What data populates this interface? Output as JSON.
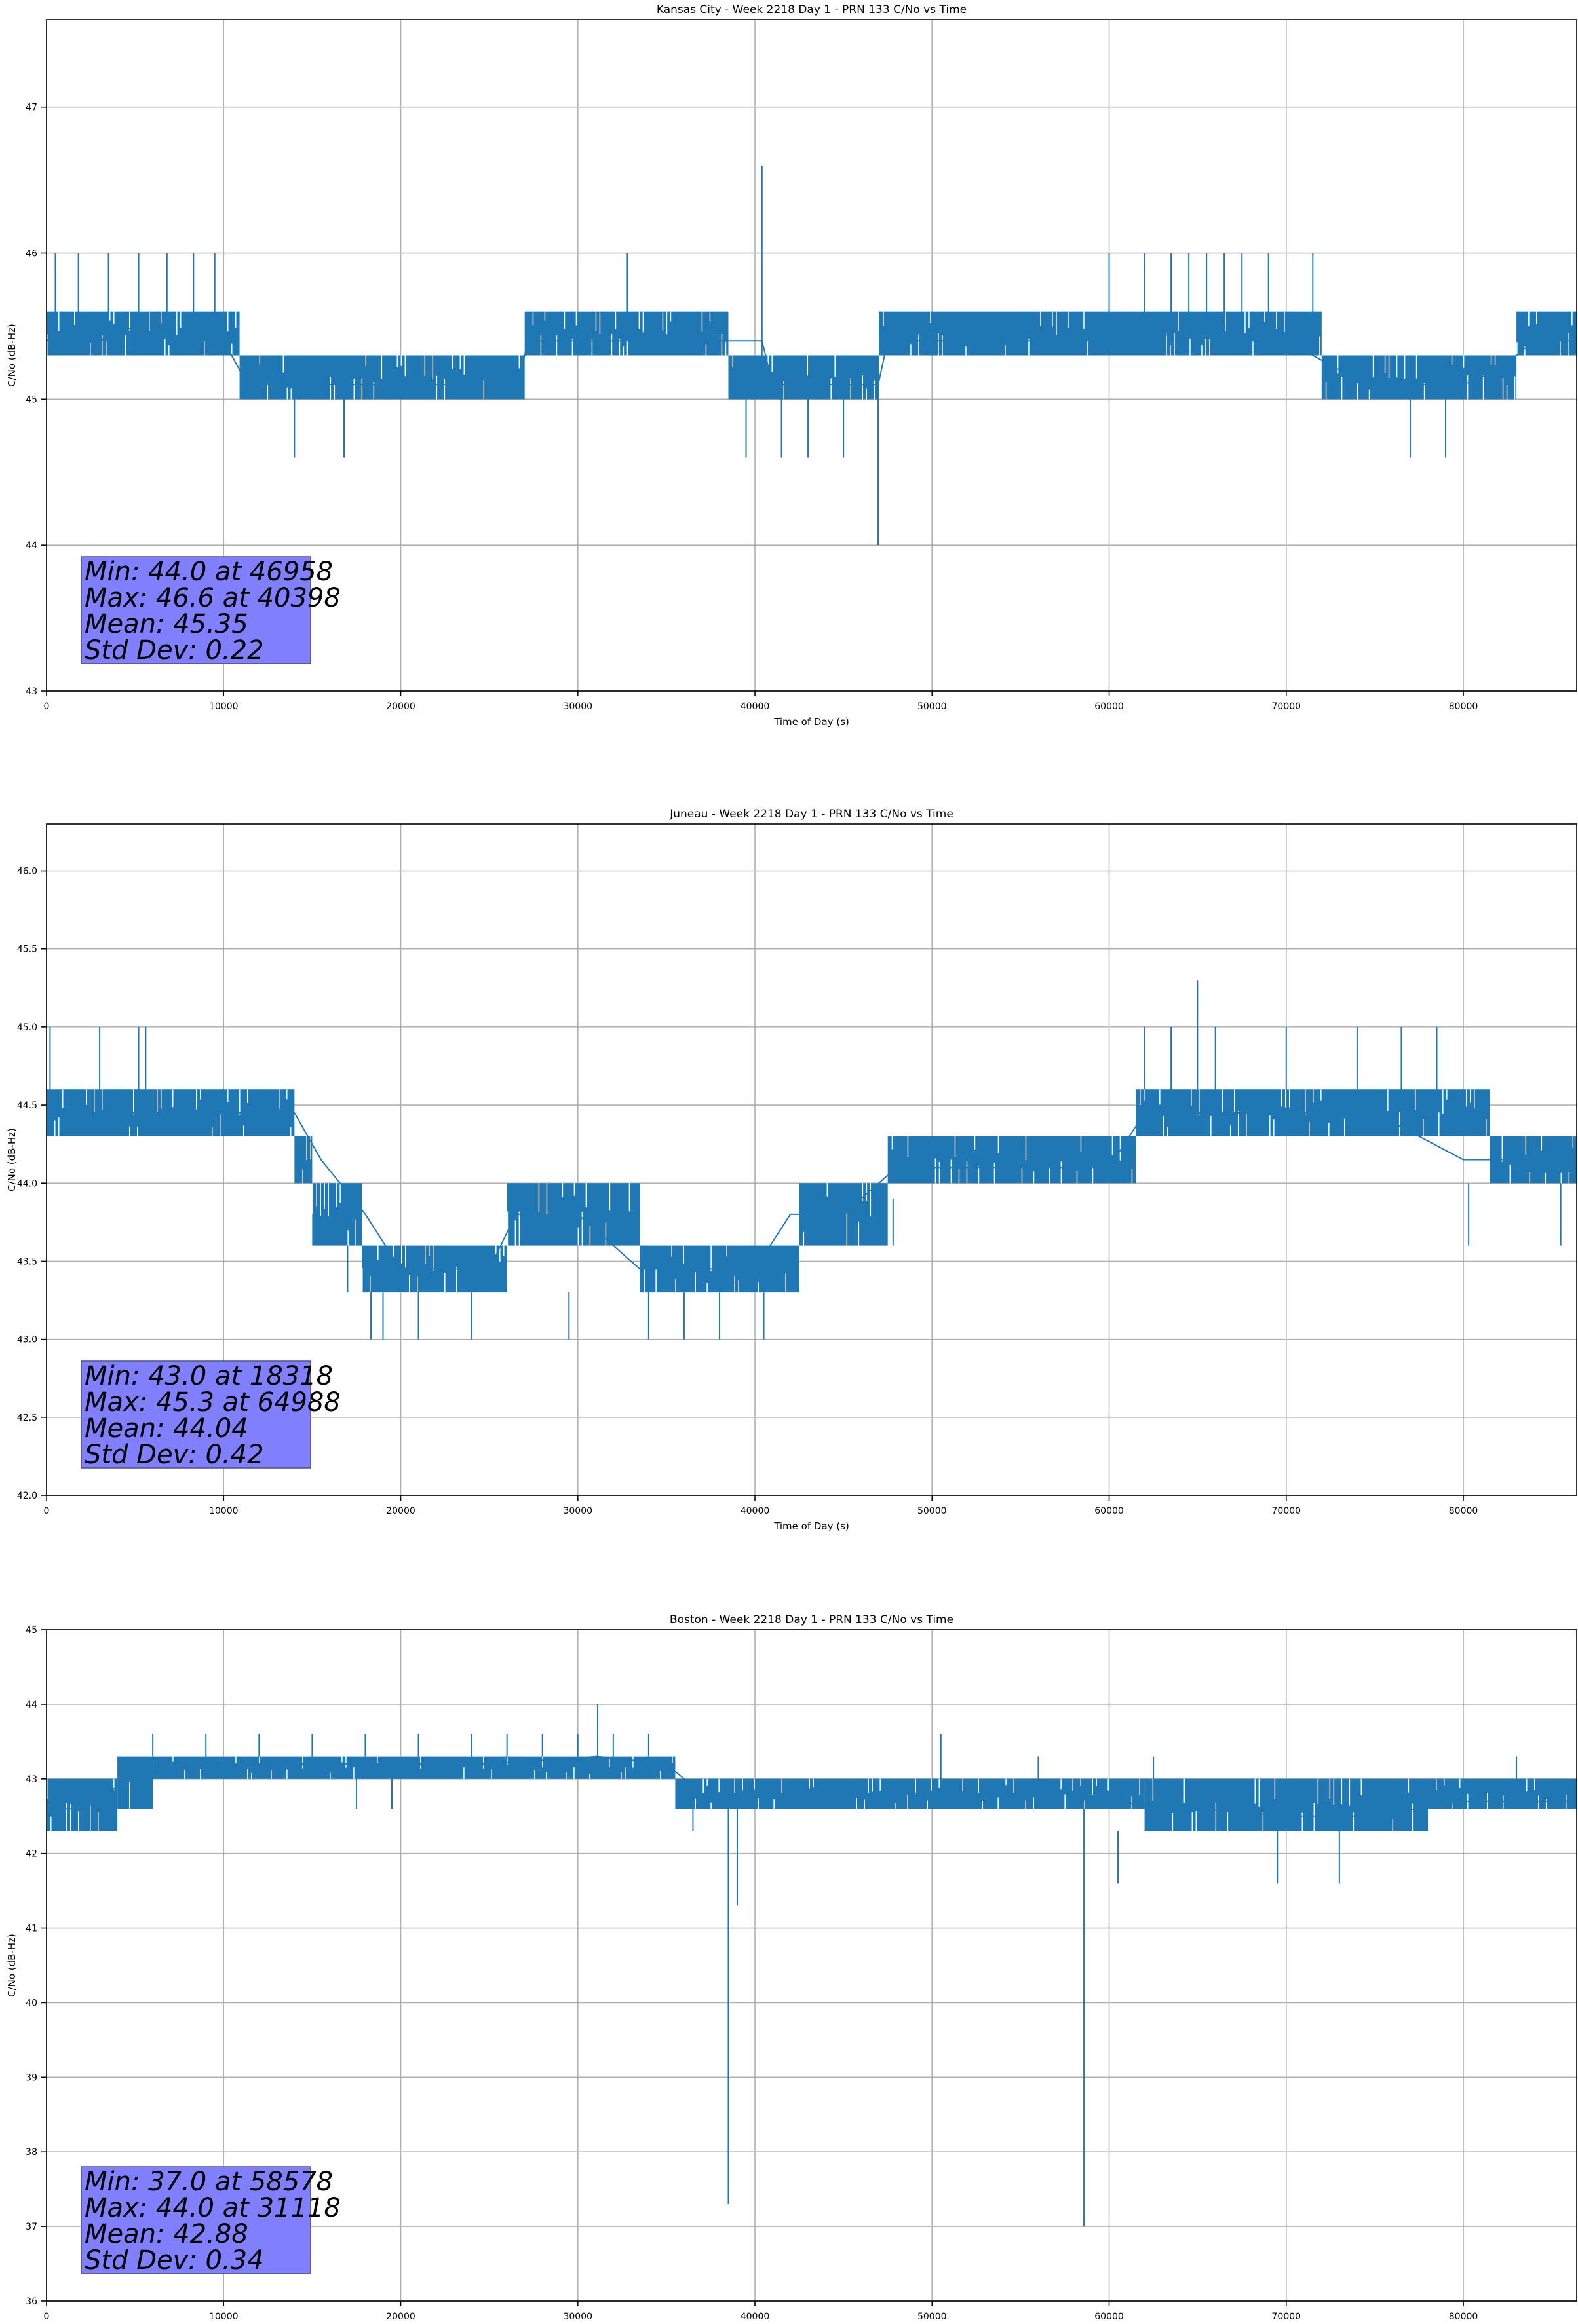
{
  "chart_data": [
    {
      "type": "line",
      "title": "Kansas City - Week 2218 Day 1 - PRN 133 C/No vs Time",
      "xlabel": "Time of Day (s)",
      "ylabel": "C/No (dB-Hz)",
      "xlim": [
        0,
        86400
      ],
      "ylim": [
        43,
        47.6
      ],
      "xticks": [
        0,
        10000,
        20000,
        30000,
        40000,
        50000,
        60000,
        70000,
        80000
      ],
      "xtick_labels": [
        "0",
        "10000",
        "20000",
        "30000",
        "40000",
        "50000",
        "60000",
        "70000",
        "80000"
      ],
      "yticks": [
        43,
        44,
        45,
        46,
        47
      ],
      "ytick_labels": [
        "43",
        "44",
        "45",
        "46",
        "47"
      ],
      "grid": true,
      "color": "#1f77b4",
      "series": [
        {
          "name": "C/No",
          "x": [
            0,
            1500,
            3000,
            5000,
            7000,
            9000,
            10000,
            10900,
            11200,
            14000,
            16500,
            20000,
            23000,
            26800,
            27200,
            29000,
            31000,
            32800,
            34000,
            38000,
            40398,
            41000,
            44000,
            46958,
            47500,
            50000,
            55000,
            60000,
            62000,
            65000,
            68000,
            70000,
            73000,
            75000,
            77000,
            80000,
            82000,
            84000,
            86400
          ],
          "values": [
            45.4,
            45.5,
            45.4,
            45.5,
            45.4,
            45.5,
            45.4,
            45.2,
            45.1,
            45.1,
            45.1,
            45.1,
            45.1,
            45.2,
            45.4,
            45.4,
            45.4,
            45.4,
            45.4,
            45.4,
            45.4,
            45.1,
            45.1,
            45.1,
            45.4,
            45.4,
            45.4,
            45.4,
            45.4,
            45.5,
            45.4,
            45.4,
            45.2,
            45.1,
            45.1,
            45.1,
            45.2,
            45.4,
            45.4
          ]
        }
      ],
      "band": {
        "ranges": [
          [
            0,
            10900,
            45.3,
            45.6
          ],
          [
            10900,
            27000,
            45.0,
            45.3
          ],
          [
            27000,
            38500,
            45.3,
            45.6
          ],
          [
            38500,
            47000,
            45.0,
            45.3
          ],
          [
            47000,
            72000,
            45.3,
            45.6
          ],
          [
            72000,
            83000,
            45.0,
            45.3
          ],
          [
            83000,
            86400,
            45.3,
            45.6
          ]
        ]
      },
      "spikes": [
        [
          40398,
          45.3,
          46.6
        ],
        [
          46958,
          45.1,
          44.0
        ],
        [
          32800,
          45.4,
          46.0
        ],
        [
          14000,
          45.1,
          44.6
        ],
        [
          16800,
          45.1,
          44.6
        ],
        [
          39500,
          45.1,
          44.6
        ],
        [
          41500,
          45.1,
          44.6
        ],
        [
          43000,
          45.1,
          44.6
        ],
        [
          45000,
          45.1,
          44.6
        ],
        [
          77000,
          45.1,
          44.6
        ],
        [
          79000,
          45.1,
          44.6
        ],
        [
          500,
          45.5,
          46.0
        ],
        [
          1800,
          45.5,
          46.0
        ],
        [
          3500,
          45.5,
          46.0
        ],
        [
          5200,
          45.5,
          46.0
        ],
        [
          6800,
          45.5,
          46.0
        ],
        [
          8300,
          45.5,
          46.0
        ],
        [
          9500,
          45.5,
          46.0
        ],
        [
          60000,
          45.5,
          46.0
        ],
        [
          62000,
          45.5,
          46.0
        ],
        [
          63500,
          45.5,
          46.0
        ],
        [
          64500,
          45.5,
          46.0
        ],
        [
          65500,
          45.5,
          46.0
        ],
        [
          66500,
          45.5,
          46.0
        ],
        [
          67500,
          45.5,
          46.0
        ],
        [
          69000,
          45.5,
          46.0
        ],
        [
          71500,
          45.5,
          46.0
        ]
      ],
      "stats_box": [
        "Min: 44.0 at 46958",
        "Max: 46.6 at 40398",
        "Mean: 45.35",
        "Std Dev: 0.22"
      ]
    },
    {
      "type": "line",
      "title": "Juneau - Week 2218 Day 1 - PRN 133 C/No vs Time",
      "xlabel": "Time of Day (s)",
      "ylabel": "C/No (dB-Hz)",
      "xlim": [
        0,
        86400
      ],
      "ylim": [
        42.0,
        46.3
      ],
      "xticks": [
        0,
        10000,
        20000,
        30000,
        40000,
        50000,
        60000,
        70000,
        80000
      ],
      "xtick_labels": [
        "0",
        "10000",
        "20000",
        "30000",
        "40000",
        "50000",
        "60000",
        "70000",
        "80000"
      ],
      "yticks": [
        42.0,
        42.5,
        43.0,
        43.5,
        44.0,
        44.5,
        45.0,
        45.5,
        46.0
      ],
      "ytick_labels": [
        "42.0",
        "42.5",
        "43.0",
        "43.5",
        "44.0",
        "44.5",
        "45.0",
        "45.5",
        "46.0"
      ],
      "grid": true,
      "color": "#1f77b4",
      "series": [
        {
          "name": "C/No",
          "x": [
            0,
            5000,
            10000,
            14000,
            15500,
            18000,
            20000,
            25000,
            26500,
            30000,
            33500,
            36000,
            40000,
            42000,
            45000,
            48000,
            50000,
            55000,
            60000,
            62000,
            64988,
            70000,
            75000,
            80000,
            82000,
            86400
          ],
          "values": [
            44.45,
            44.45,
            44.45,
            44.45,
            44.15,
            43.8,
            43.45,
            43.45,
            43.8,
            43.8,
            43.45,
            43.45,
            43.45,
            43.8,
            43.8,
            44.1,
            44.1,
            44.1,
            44.1,
            44.45,
            44.45,
            44.45,
            44.45,
            44.15,
            44.15,
            44.15
          ]
        }
      ],
      "band": {
        "ranges": [
          [
            0,
            14000,
            44.3,
            44.6
          ],
          [
            14000,
            15000,
            44.0,
            44.3
          ],
          [
            15000,
            17800,
            43.6,
            44.0
          ],
          [
            17800,
            26000,
            43.3,
            43.6
          ],
          [
            26000,
            33500,
            43.6,
            44.0
          ],
          [
            33500,
            42500,
            43.3,
            43.6
          ],
          [
            42500,
            47500,
            43.6,
            44.0
          ],
          [
            47500,
            61500,
            44.0,
            44.3
          ],
          [
            61500,
            81500,
            44.3,
            44.6
          ],
          [
            81500,
            86400,
            44.0,
            44.3
          ]
        ]
      },
      "spikes": [
        [
          64988,
          44.6,
          45.3
        ],
        [
          18318,
          43.3,
          43.0
        ],
        [
          19000,
          43.3,
          43.0
        ],
        [
          21000,
          43.3,
          43.0
        ],
        [
          29500,
          43.3,
          43.0
        ],
        [
          34000,
          43.3,
          43.0
        ],
        [
          36000,
          43.3,
          43.0
        ],
        [
          38000,
          43.3,
          43.0
        ],
        [
          40500,
          43.3,
          43.0
        ],
        [
          200,
          44.6,
          45.0
        ],
        [
          3000,
          44.6,
          45.0
        ],
        [
          5200,
          44.6,
          45.0
        ],
        [
          5600,
          44.6,
          45.0
        ],
        [
          62000,
          44.6,
          45.0
        ],
        [
          63500,
          44.6,
          45.0
        ],
        [
          66000,
          44.6,
          45.0
        ],
        [
          70000,
          44.6,
          45.0
        ],
        [
          74000,
          44.6,
          45.0
        ],
        [
          76500,
          44.6,
          45.0
        ],
        [
          78500,
          44.6,
          45.0
        ],
        [
          17000,
          43.6,
          43.3
        ],
        [
          24000,
          43.3,
          43.0
        ],
        [
          47800,
          43.9,
          43.6
        ],
        [
          80300,
          44.0,
          43.6
        ],
        [
          85500,
          44.0,
          43.6
        ]
      ],
      "stats_box": [
        "Min: 43.0 at 18318",
        "Max: 45.3 at 64988",
        "Mean: 44.04",
        "Std Dev: 0.42"
      ]
    },
    {
      "type": "line",
      "title": "Boston - Week 2218 Day 1 - PRN 133 C/No vs Time",
      "xlabel": "Time of Day (s)",
      "ylabel": "C/No (dB-Hz)",
      "xlim": [
        0,
        86400
      ],
      "ylim": [
        36,
        45
      ],
      "xticks": [
        0,
        10000,
        20000,
        30000,
        40000,
        50000,
        60000,
        70000,
        80000
      ],
      "xtick_labels": [
        "0",
        "10000",
        "20000",
        "30000",
        "40000",
        "50000",
        "60000",
        "70000",
        "80000"
      ],
      "yticks": [
        36,
        37,
        38,
        39,
        40,
        41,
        42,
        43,
        44,
        45
      ],
      "ytick_labels": [
        "36",
        "37",
        "38",
        "39",
        "40",
        "41",
        "42",
        "43",
        "44",
        "45"
      ],
      "grid": true,
      "color": "#1f77b4",
      "series": [
        {
          "name": "C/No",
          "x": [
            0,
            2000,
            4000,
            6000,
            10000,
            20000,
            25000,
            31118,
            35000,
            37000,
            40000,
            50000,
            58578,
            60000,
            65000,
            70000,
            75000,
            80000,
            86400
          ],
          "values": [
            42.6,
            42.6,
            42.9,
            43.1,
            43.2,
            43.2,
            43.2,
            43.3,
            43.2,
            42.8,
            42.8,
            42.8,
            42.8,
            42.7,
            42.6,
            42.5,
            42.5,
            42.7,
            42.7
          ]
        }
      ],
      "band": {
        "ranges": [
          [
            0,
            4000,
            42.3,
            43.0
          ],
          [
            4000,
            6000,
            42.6,
            43.3
          ],
          [
            6000,
            35500,
            43.0,
            43.3
          ],
          [
            35500,
            62000,
            42.6,
            43.0
          ],
          [
            62000,
            78000,
            42.3,
            43.0
          ],
          [
            78000,
            86400,
            42.6,
            43.0
          ]
        ]
      },
      "spikes": [
        [
          38500,
          42.6,
          37.3
        ],
        [
          39000,
          42.6,
          41.3
        ],
        [
          58578,
          42.6,
          37.0
        ],
        [
          31118,
          43.3,
          44.0
        ],
        [
          60500,
          42.3,
          41.6
        ],
        [
          69500,
          42.3,
          41.6
        ],
        [
          73000,
          42.3,
          41.6
        ],
        [
          6000,
          43.3,
          43.6
        ],
        [
          9000,
          43.3,
          43.6
        ],
        [
          12000,
          43.3,
          43.6
        ],
        [
          15000,
          43.3,
          43.6
        ],
        [
          18000,
          43.3,
          43.6
        ],
        [
          21000,
          43.3,
          43.6
        ],
        [
          24000,
          43.3,
          43.6
        ],
        [
          26000,
          43.3,
          43.6
        ],
        [
          28000,
          43.3,
          43.6
        ],
        [
          30000,
          43.3,
          43.6
        ],
        [
          32000,
          43.3,
          43.6
        ],
        [
          34000,
          43.3,
          43.6
        ],
        [
          50500,
          43.0,
          43.6
        ],
        [
          56000,
          43.0,
          43.3
        ],
        [
          62500,
          43.0,
          43.3
        ],
        [
          83000,
          43.0,
          43.3
        ],
        [
          17500,
          43.0,
          42.6
        ],
        [
          19500,
          43.0,
          42.6
        ],
        [
          36500,
          42.6,
          42.3
        ]
      ],
      "stats_box": [
        "Min: 37.0 at 58578",
        "Max: 44.0 at 31118",
        "Mean: 42.88",
        "Std Dev: 0.34"
      ]
    }
  ]
}
